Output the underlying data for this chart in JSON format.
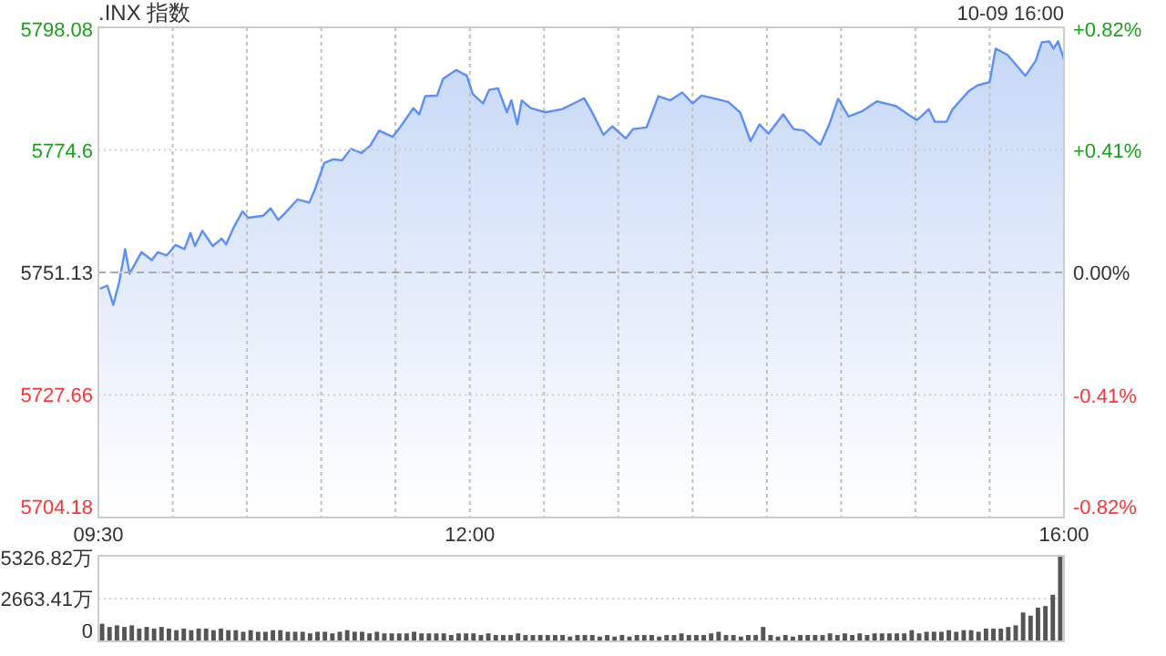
{
  "chart_data": [
    {
      "type": "area",
      "title": ".INX 指数",
      "subtitle": "10-09 16:00",
      "x": [
        9.51,
        9.56,
        9.6,
        9.64,
        9.68,
        9.71,
        9.79,
        9.86,
        9.9,
        9.96,
        10.02,
        10.08,
        10.12,
        10.15,
        10.2,
        10.27,
        10.33,
        10.36,
        10.41,
        10.47,
        10.51,
        10.61,
        10.66,
        10.71,
        10.76,
        10.84,
        10.92,
        10.96,
        11.02,
        11.08,
        11.14,
        11.2,
        11.27,
        11.33,
        11.39,
        11.48,
        11.53,
        11.62,
        11.66,
        11.7,
        11.78,
        11.82,
        11.91,
        11.98,
        12.02,
        12.09,
        12.13,
        12.19,
        12.25,
        12.28,
        12.32,
        12.35,
        12.41,
        12.51,
        12.62,
        12.7,
        12.77,
        12.82,
        12.9,
        12.96,
        13.05,
        13.1,
        13.19,
        13.27,
        13.35,
        13.43,
        13.5,
        13.56,
        13.64,
        13.74,
        13.82,
        13.89,
        13.95,
        14.01,
        14.11,
        14.18,
        14.25,
        14.36,
        14.42,
        14.48,
        14.55,
        14.64,
        14.74,
        14.87,
        14.95,
        15.01,
        15.09,
        15.13,
        15.21,
        15.25,
        15.36,
        15.42,
        15.5,
        15.54,
        15.62,
        15.74,
        15.81,
        15.85,
        15.9,
        15.93,
        15.96,
        16.0
      ],
      "series": [
        {
          "color": "#5b8ff9",
          "values": [
            5748.0,
            5748.6,
            5744.9,
            5749.2,
            5755.6,
            5750.9,
            5755.0,
            5753.5,
            5755.0,
            5754.4,
            5756.4,
            5755.6,
            5758.7,
            5756.2,
            5759.1,
            5756.2,
            5757.6,
            5756.5,
            5759.7,
            5762.8,
            5761.6,
            5762.0,
            5763.4,
            5761.2,
            5762.6,
            5765.1,
            5764.5,
            5767.2,
            5772.1,
            5772.8,
            5772.6,
            5774.8,
            5774.0,
            5775.4,
            5778.3,
            5777.1,
            5778.9,
            5782.6,
            5781.4,
            5784.9,
            5785.0,
            5788.2,
            5789.9,
            5788.8,
            5785.3,
            5783.5,
            5786.1,
            5786.4,
            5781.8,
            5784.1,
            5779.5,
            5784.1,
            5782.6,
            5781.8,
            5782.4,
            5783.5,
            5784.5,
            5782.0,
            5777.5,
            5779.1,
            5776.8,
            5778.6,
            5778.9,
            5784.9,
            5784.1,
            5785.6,
            5783.5,
            5785.0,
            5784.5,
            5783.8,
            5781.8,
            5776.3,
            5779.5,
            5777.7,
            5781.4,
            5778.6,
            5778.3,
            5775.6,
            5779.5,
            5784.4,
            5781.0,
            5782.0,
            5783.9,
            5783.0,
            5781.4,
            5780.3,
            5782.4,
            5780.0,
            5780.0,
            5782.4,
            5785.9,
            5787.0,
            5787.6,
            5794.0,
            5792.8,
            5788.8,
            5791.7,
            5795.2,
            5795.4,
            5794.0,
            5795.4,
            5792.0
          ]
        }
      ],
      "xlim": [
        9.5,
        16
      ],
      "xticks": [
        {
          "value": 9.5,
          "label": "09:30"
        },
        {
          "value": 10,
          "label": null
        },
        {
          "value": 10.5,
          "label": null
        },
        {
          "value": 11,
          "label": null
        },
        {
          "value": 11.5,
          "label": null
        },
        {
          "value": 12,
          "label": "12:00"
        },
        {
          "value": 12.5,
          "label": null
        },
        {
          "value": 13,
          "label": null
        },
        {
          "value": 13.5,
          "label": null
        },
        {
          "value": 14,
          "label": null
        },
        {
          "value": 14.5,
          "label": null
        },
        {
          "value": 15,
          "label": null
        },
        {
          "value": 15.5,
          "label": null
        },
        {
          "value": 16,
          "label": "16:00"
        }
      ],
      "ylim": [
        5704.18,
        5798.08
      ],
      "yticks": [
        5704.18,
        5727.66,
        5751.13,
        5774.6,
        5798.08
      ],
      "y2lim": [
        -0.82,
        0.82
      ],
      "y2ticks": [
        {
          "value": -0.82,
          "label": "-0.82%"
        },
        {
          "value": -0.41,
          "label": "-0.41%"
        },
        {
          "value": 0,
          "label": "0.00%"
        },
        {
          "value": 0.41,
          "label": "+0.41%"
        },
        {
          "value": 0.82,
          "label": "+0.82%"
        }
      ],
      "ref_lines": [
        {
          "axis": "y",
          "value": 5751.13,
          "color": "#aaaaaa",
          "line_style": "dashed"
        }
      ],
      "grid": true,
      "marker": "none",
      "line_style": "solid"
    },
    {
      "type": "bar",
      "categories": [
        null,
        null,
        null,
        null,
        null,
        null,
        null,
        null,
        null,
        null,
        null,
        null,
        null,
        null,
        null,
        null,
        null,
        null,
        null,
        null,
        null,
        null,
        null,
        null,
        null,
        null,
        null,
        null,
        null,
        null,
        null,
        null,
        null,
        null,
        null,
        null,
        null,
        null,
        null,
        null,
        null,
        null,
        null,
        null,
        null,
        null,
        null,
        null,
        null,
        null,
        null,
        null,
        null,
        null,
        null,
        null,
        null,
        null,
        null,
        null,
        null,
        null,
        null,
        null,
        null,
        null,
        null,
        null,
        null,
        null,
        null,
        null,
        null,
        null,
        null,
        null,
        null,
        null,
        null,
        null,
        null,
        null,
        null,
        null,
        null,
        null,
        null,
        null,
        null,
        null,
        null,
        null,
        null,
        null,
        null,
        null,
        null,
        null,
        null,
        null,
        null,
        null,
        null,
        null,
        null,
        null,
        null,
        null,
        null,
        null,
        null,
        null,
        null,
        null,
        null,
        null,
        null,
        null,
        null,
        null,
        null,
        null,
        null,
        null,
        null,
        null,
        null,
        null,
        null,
        null
      ],
      "values": [
        1100,
        900,
        1000,
        900,
        1000,
        800,
        900,
        800,
        900,
        800,
        700,
        800,
        700,
        800,
        800,
        700,
        800,
        700,
        700,
        600,
        700,
        600,
        600,
        700,
        700,
        600,
        600,
        600,
        500,
        600,
        600,
        500,
        600,
        700,
        600,
        600,
        500,
        600,
        500,
        500,
        500,
        500,
        600,
        500,
        500,
        500,
        500,
        400,
        500,
        500,
        500,
        400,
        500,
        400,
        400,
        400,
        500,
        400,
        400,
        400,
        400,
        400,
        400,
        300,
        400,
        400,
        400,
        300,
        400,
        300,
        400,
        300,
        400,
        400,
        400,
        300,
        400,
        400,
        500,
        400,
        400,
        400,
        500,
        600,
        400,
        400,
        300,
        400,
        400,
        900,
        400,
        300,
        400,
        300,
        400,
        400,
        400,
        400,
        500,
        400,
        500,
        400,
        500,
        400,
        500,
        500,
        500,
        500,
        500,
        700,
        500,
        600,
        600,
        600,
        700,
        600,
        700,
        700,
        600,
        800,
        800,
        800,
        900,
        1000,
        1800,
        1600,
        2100,
        2200,
        2900,
        5300
      ],
      "color": "#555555",
      "ylim": [
        0,
        5326.82
      ],
      "yticks": [
        0,
        {
          "value": 2663.41,
          "label": "2663.41万"
        },
        {
          "value": 5326.82,
          "label": "5326.82万"
        }
      ],
      "grid": "y",
      "tick_labels": "y"
    }
  ]
}
